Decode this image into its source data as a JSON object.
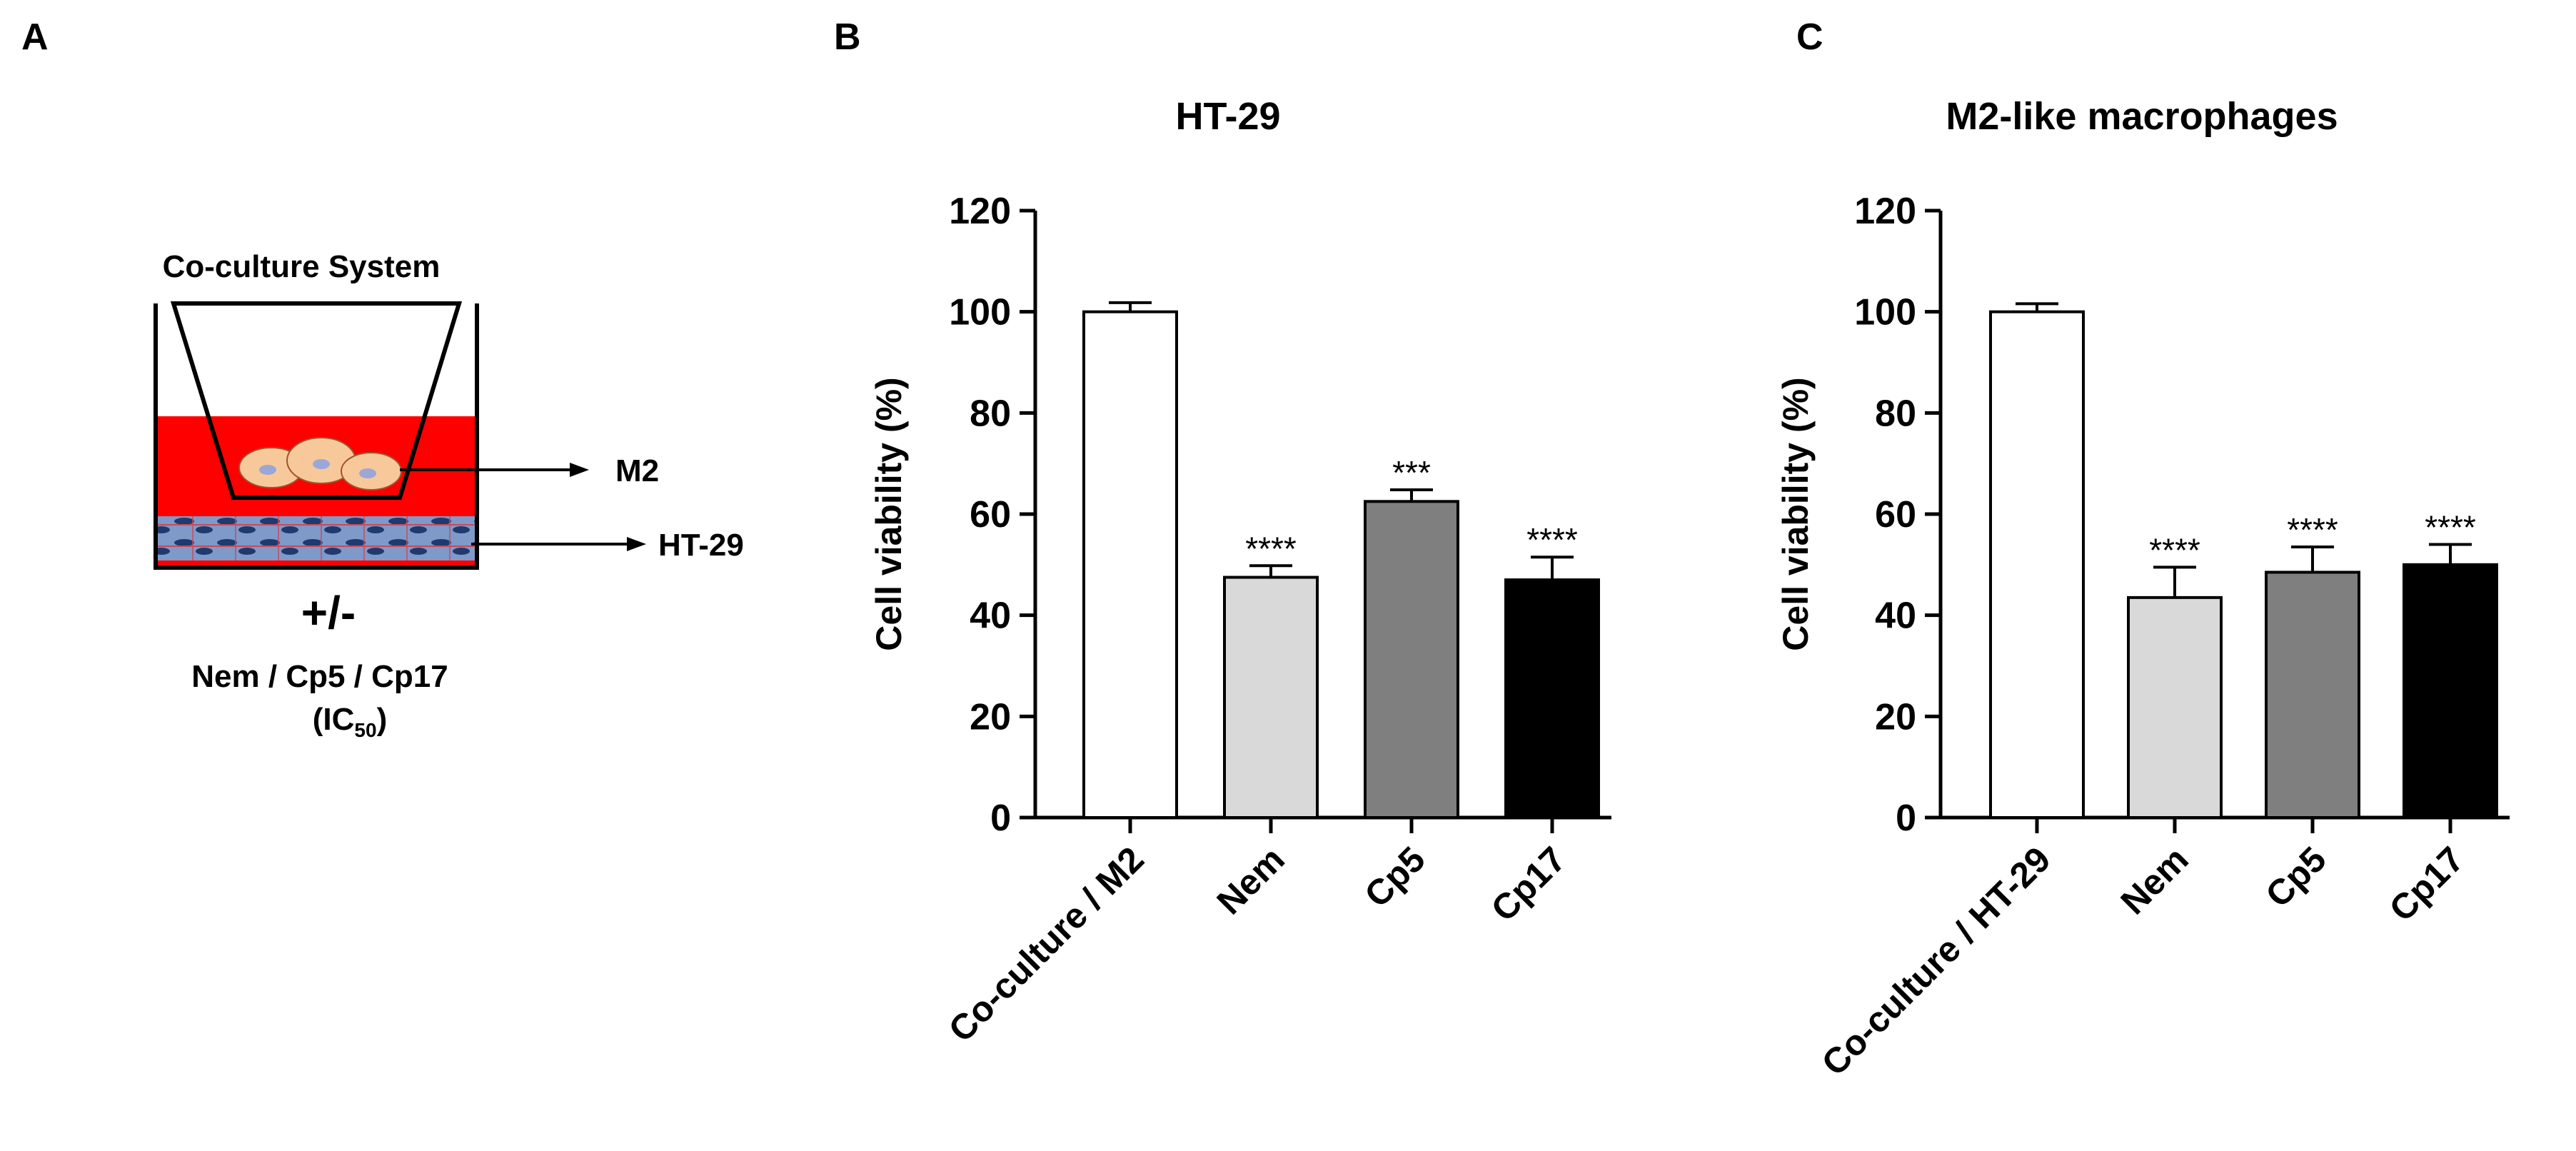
{
  "panels": {
    "a_letter": "A",
    "b_letter": "B",
    "c_letter": "C"
  },
  "diagram": {
    "title": "Co-culture System",
    "label_m2": "M2",
    "label_ht29": "HT-29",
    "plus_minus": "+/-",
    "treatments": "Nem / Cp5 / Cp17",
    "ic50_prefix": "(IC",
    "ic50_sub": "50",
    "ic50_suffix": ")",
    "medium_color": "#ff0000"
  },
  "chart_data": [
    {
      "type": "bar",
      "title": "HT-29",
      "ylabel": "Cell viability (%)",
      "xlabel": "",
      "ylim": [
        0,
        120
      ],
      "yticks": [
        0,
        20,
        40,
        60,
        80,
        100,
        120
      ],
      "categories": [
        "Co-culture / M2",
        "Nem",
        "Cp5",
        "Cp17"
      ],
      "values": [
        100,
        47.5,
        62.5,
        47
      ],
      "errors": [
        1.8,
        2.3,
        2.3,
        4.5
      ],
      "significance": [
        "",
        "****",
        "***",
        "****"
      ],
      "colors": [
        "#ffffff",
        "#d9d9d9",
        "#7f7f7f",
        "#000000"
      ]
    },
    {
      "type": "bar",
      "title": "M2-like macrophages",
      "ylabel": "Cell viability (%)",
      "xlabel": "",
      "ylim": [
        0,
        120
      ],
      "yticks": [
        0,
        20,
        40,
        60,
        80,
        100,
        120
      ],
      "categories": [
        "Co-culture / HT-29",
        "Nem",
        "Cp5",
        "Cp17"
      ],
      "values": [
        100,
        43.5,
        48.5,
        50
      ],
      "errors": [
        1.6,
        6,
        5,
        4
      ],
      "significance": [
        "",
        "****",
        "****",
        "****"
      ],
      "colors": [
        "#ffffff",
        "#d9d9d9",
        "#7f7f7f",
        "#000000"
      ]
    }
  ]
}
